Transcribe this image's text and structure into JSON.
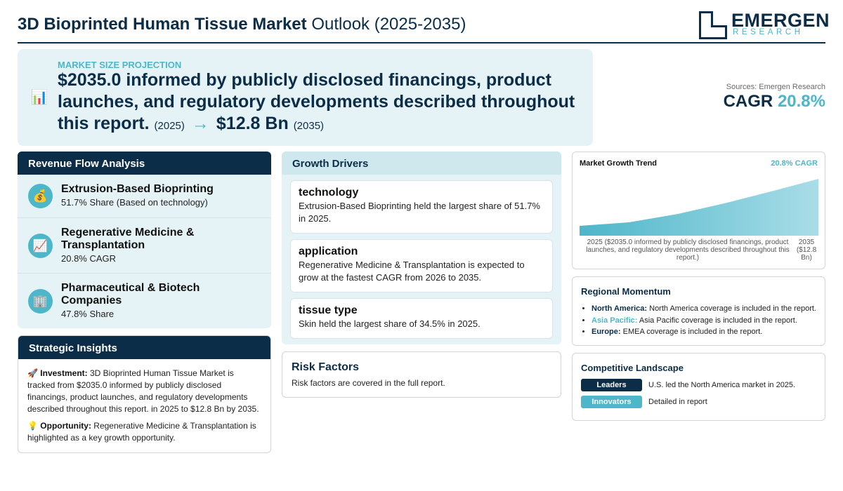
{
  "header": {
    "title_bold": "3D Bioprinted Human Tissue Market",
    "title_rest": " Outlook (2025-2035)",
    "logo_main": "EMERGEN",
    "logo_sub": "RESEARCH"
  },
  "banner": {
    "icon": "bar-chart-icon",
    "kicker": "MARKET SIZE PROJECTION",
    "start_value": "$2035.0 informed by publicly disclosed financings, product launches, and regulatory developments described throughout this report.",
    "start_year": "(2025)",
    "arrow": "→",
    "end_value": "$12.8 Bn",
    "end_year": "(2035)"
  },
  "summary": {
    "sources": "Sources: Emergen Research",
    "cagr_label": "CAGR",
    "cagr_value": "20.8%"
  },
  "revenue_flow": {
    "heading": "Revenue Flow Analysis",
    "items": [
      {
        "icon": "money-bag-icon",
        "title": "Extrusion-Based Bioprinting",
        "sub": "51.7% Share (Based on technology)"
      },
      {
        "icon": "chart-up-icon",
        "title": "Regenerative Medicine & Transplantation",
        "sub": "20.8% CAGR"
      },
      {
        "icon": "office-building-icon",
        "title": "Pharmaceutical & Biotech Companies",
        "sub": "47.8% Share"
      }
    ]
  },
  "strategic_insights": {
    "heading": "Strategic Insights",
    "investment_label": "Investment:",
    "investment_text": "3D Bioprinted Human Tissue Market is tracked from $2035.0 informed by publicly disclosed financings, product launches, and regulatory developments described throughout this report. in 2025 to $12.8 Bn by 2035.",
    "opportunity_label": "Opportunity:",
    "opportunity_text": "Regenerative Medicine & Transplantation is highlighted as a key growth opportunity."
  },
  "growth_drivers": {
    "heading": "Growth Drivers",
    "items": [
      {
        "title": "technology",
        "desc": "Extrusion-Based Bioprinting held the largest share of 51.7% in 2025."
      },
      {
        "title": "application",
        "desc": "Regenerative Medicine & Transplantation is expected to grow at the fastest CAGR from 2026 to 2035."
      },
      {
        "title": "tissue type",
        "desc": "Skin held the largest share of 34.5% in 2025."
      }
    ]
  },
  "risk_factors": {
    "heading": "Risk Factors",
    "text": "Risk factors are covered in the full report."
  },
  "trend": {
    "heading": "Market Growth Trend",
    "cagr": "20.8% CAGR",
    "start_label": "2025 ($2035.0 informed by publicly disclosed financings, product launches, and regulatory developments described throughout this report.)",
    "end_label": "2035 ($12.8 Bn)",
    "colors": {
      "area_top": "#4db6c9",
      "area_bottom": "#e6f3f6"
    }
  },
  "regional": {
    "heading": "Regional Momentum",
    "items": [
      {
        "region": "North America:",
        "text": "North America coverage is included in the report."
      },
      {
        "region": "Asia Pacific:",
        "text": "Asia Pacific coverage is included in the report."
      },
      {
        "region": "Europe:",
        "text": "EMEA coverage is included in the report."
      }
    ]
  },
  "competitive": {
    "heading": "Competitive Landscape",
    "rows": [
      {
        "badge": "Leaders",
        "text": "U.S. led the North America market in 2025.",
        "color": "#0b2d48"
      },
      {
        "badge": "Innovators",
        "text": "Detailed in report",
        "color": "#4db6c9"
      }
    ]
  }
}
